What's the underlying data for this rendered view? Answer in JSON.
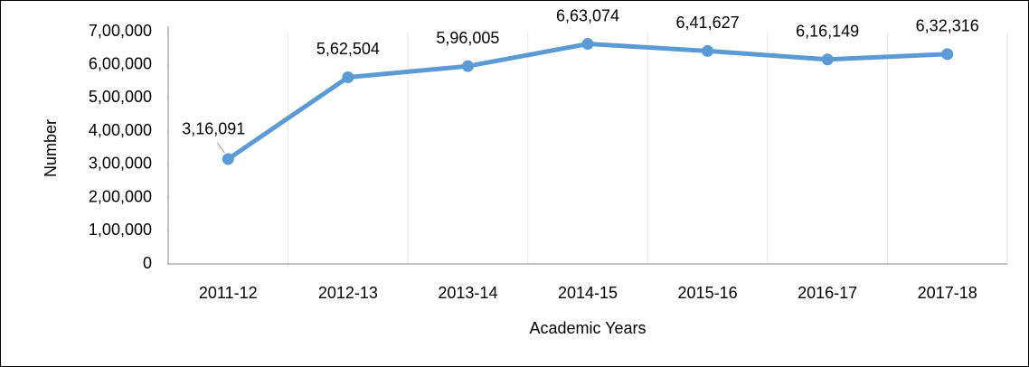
{
  "chart_data": {
    "type": "line",
    "xlabel": "Academic Years",
    "ylabel": "Number",
    "categories": [
      "2011-12",
      "2012-13",
      "2013-14",
      "2014-15",
      "2015-16",
      "2016-17",
      "2017-18"
    ],
    "series": [
      {
        "name": "Number",
        "color": "#5b9bd5",
        "values": [
          316091,
          562504,
          596005,
          663074,
          641627,
          616149,
          632316
        ],
        "value_labels": [
          "3,16,091",
          "5,62,504",
          "5,96,005",
          "6,63,074",
          "6,41,627",
          "6,16,149",
          "6,32,316"
        ]
      }
    ],
    "ylim": [
      0,
      700000
    ],
    "yticks": [
      0,
      {
        "value": 100000,
        "label": "1,00,000"
      },
      {
        "value": 200000,
        "label": "2,00,000"
      },
      {
        "value": 300000,
        "label": "3,00,000"
      },
      {
        "value": 400000,
        "label": "4,00,000"
      },
      {
        "value": 500000,
        "label": "5,00,000"
      },
      {
        "value": 600000,
        "label": "6,00,000"
      },
      {
        "value": 700000,
        "label": "7,00,000"
      }
    ],
    "grid": true
  }
}
